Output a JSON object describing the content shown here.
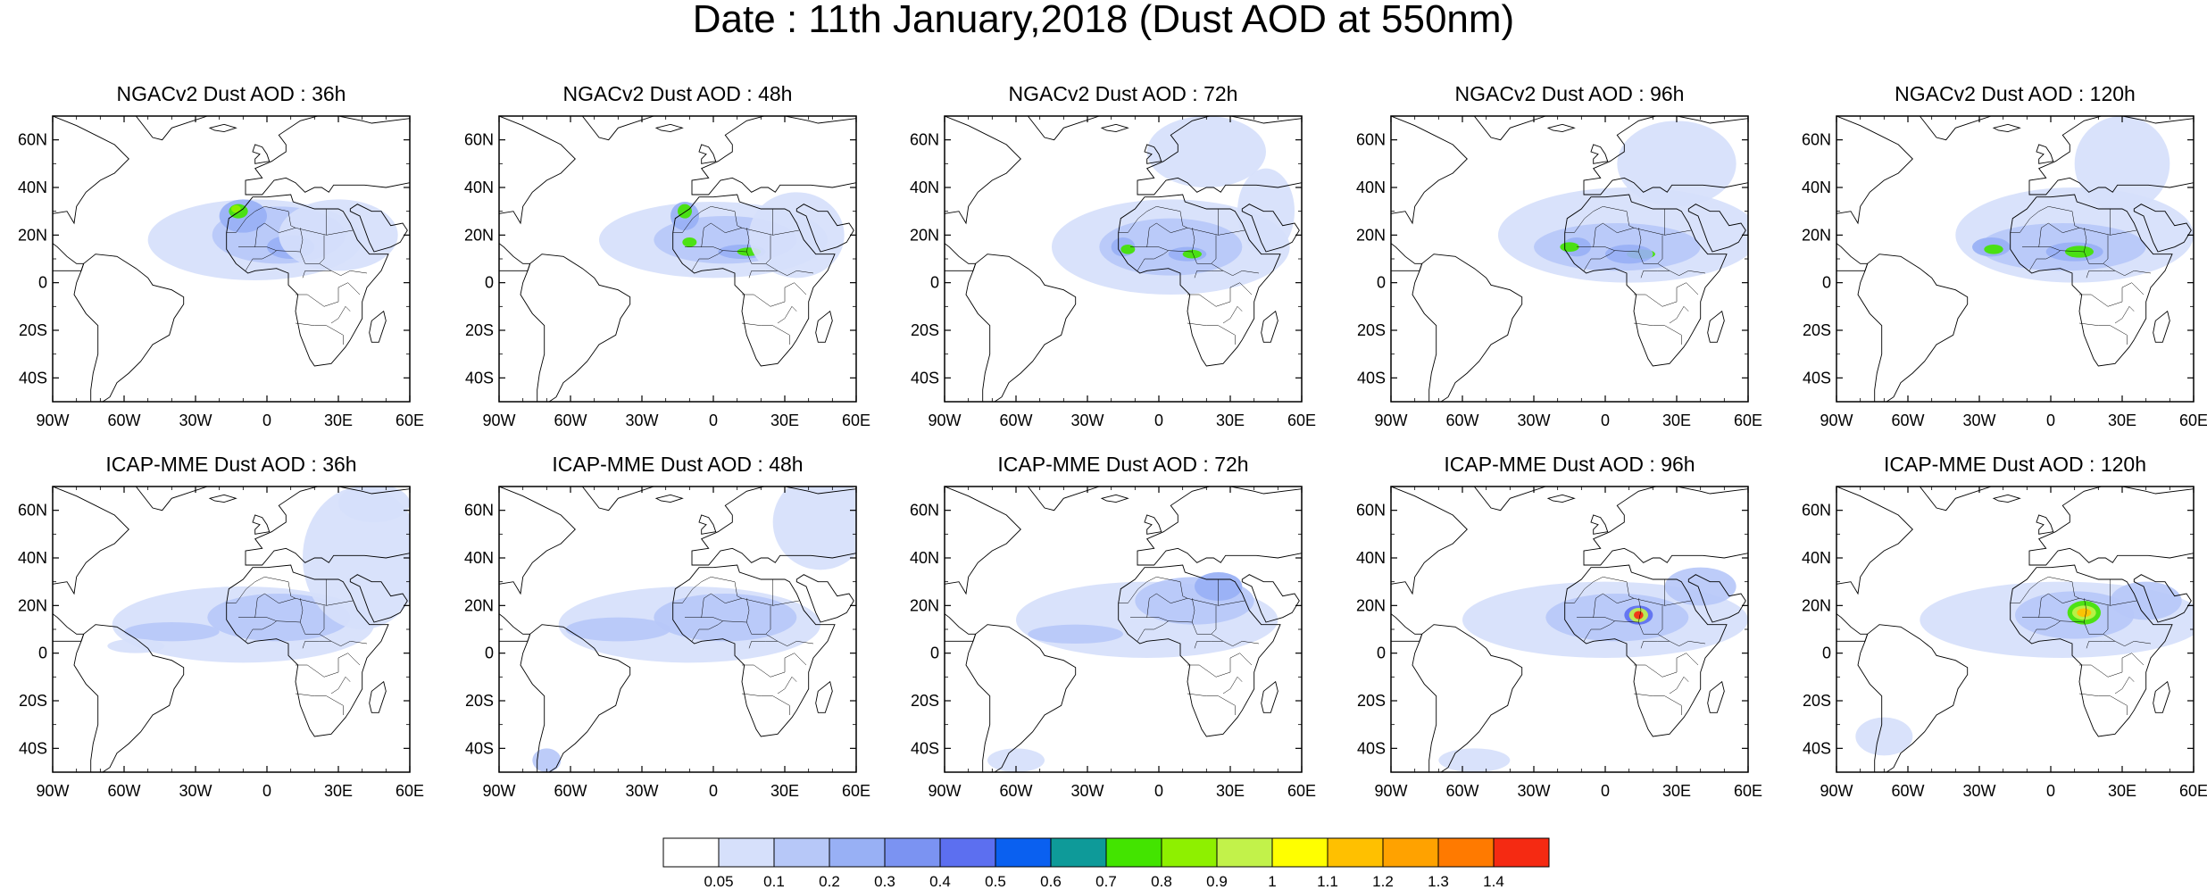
{
  "title": "Date : 11th January,2018 (Dust AOD at 550nm)",
  "rows": [
    {
      "model": "NGACv2",
      "panels": [
        {
          "title": "NGACv2 Dust AOD : 36h",
          "lead": "36h"
        },
        {
          "title": "NGACv2 Dust AOD : 48h",
          "lead": "48h"
        },
        {
          "title": "NGACv2 Dust AOD : 72h",
          "lead": "72h"
        },
        {
          "title": "NGACv2 Dust AOD : 96h",
          "lead": "96h"
        },
        {
          "title": "NGACv2 Dust AOD : 120h",
          "lead": "120h"
        }
      ]
    },
    {
      "model": "ICAP-MME",
      "panels": [
        {
          "title": "ICAP-MME Dust AOD : 36h",
          "lead": "36h"
        },
        {
          "title": "ICAP-MME Dust AOD : 48h",
          "lead": "48h"
        },
        {
          "title": "ICAP-MME Dust AOD : 72h",
          "lead": "72h"
        },
        {
          "title": "ICAP-MME Dust AOD : 96h",
          "lead": "96h"
        },
        {
          "title": "ICAP-MME Dust AOD : 120h",
          "lead": "120h"
        }
      ]
    }
  ],
  "axes": {
    "lon_range": [
      -90,
      60
    ],
    "lat_range": [
      -50,
      70
    ],
    "lon_ticks": [
      "90W",
      "60W",
      "30W",
      "0",
      "30E",
      "60E"
    ],
    "lat_ticks": [
      "60N",
      "40N",
      "20N",
      "0",
      "20S",
      "40S"
    ]
  },
  "colorbar": {
    "labels": [
      "0.05",
      "0.1",
      "0.2",
      "0.3",
      "0.4",
      "0.5",
      "0.6",
      "0.7",
      "0.8",
      "0.9",
      "1",
      "1.1",
      "1.2",
      "1.3",
      "1.4"
    ],
    "colors": [
      "#ffffff",
      "#d6e0fb",
      "#b7c8f8",
      "#98b0f5",
      "#7b93f2",
      "#5c6ff0",
      "#0a60f0",
      "#0e9a99",
      "#43e400",
      "#8ef000",
      "#c2f24a",
      "#ffff00",
      "#ffc000",
      "#ffa200",
      "#ff7a00",
      "#f52a12"
    ]
  },
  "colors": {
    "coastline": "#000000",
    "frame": "#000000"
  }
}
